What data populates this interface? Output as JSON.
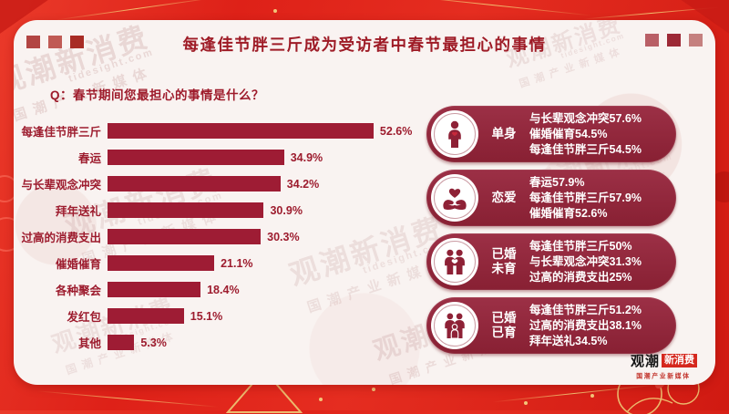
{
  "chart_data": {
    "type": "bar",
    "orientation": "horizontal",
    "title": "每逢佳节胖三斤成为受访者中春节最担心的事情",
    "question": "Q：春节期间您最担心的事情是什么？",
    "categories": [
      "每逢佳节胖三斤",
      "春运",
      "与长辈观念冲突",
      "拜年送礼",
      "过高的消费支出",
      "催婚催育",
      "各种聚会",
      "发红包",
      "其他"
    ],
    "values": [
      52.6,
      34.9,
      34.2,
      30.9,
      30.3,
      21.1,
      18.4,
      15.1,
      5.3
    ],
    "value_labels": [
      "52.6%",
      "34.9%",
      "34.2%",
      "30.9%",
      "30.3%",
      "21.1%",
      "18.4%",
      "15.1%",
      "5.3%"
    ],
    "unit": "%",
    "xlim": [
      0,
      60
    ],
    "grid": false,
    "legend": null,
    "bar_color": "#9e1c34"
  },
  "segments": [
    {
      "label_lines": [
        "单身"
      ],
      "icon": "single-person-icon",
      "stats": [
        "与长辈观念冲突57.6%",
        "催婚催育54.5%",
        "每逢佳节胖三斤54.5%"
      ]
    },
    {
      "label_lines": [
        "恋爱"
      ],
      "icon": "hands-heart-icon",
      "stats": [
        "春运57.9%",
        "每逢佳节胖三斤57.9%",
        "催婚催育52.6%"
      ]
    },
    {
      "label_lines": [
        "已婚",
        "未育"
      ],
      "icon": "couple-icon",
      "stats": [
        "每逢佳节胖三斤50%",
        "与长辈观念冲突31.3%",
        "过高的消费支出25%"
      ]
    },
    {
      "label_lines": [
        "已婚",
        "已育"
      ],
      "icon": "family-icon",
      "stats": [
        "每逢佳节胖三斤51.2%",
        "过高的消费支出38.1%",
        "拜年送礼34.5%"
      ]
    }
  ],
  "watermark": {
    "brand": "观潮新消费",
    "domain": "tidesight.com",
    "tagline": "国潮产业新媒体"
  },
  "logo": {
    "brand_black": "观潮",
    "brand_highlight": "新消费",
    "tagline": "国潮产业新媒体"
  },
  "colors": {
    "frame_red": "#e0251d",
    "card_bg": "#f9f3f1",
    "bar": "#9e1c34",
    "title": "#9e1b26",
    "pill": "#8f2639",
    "gold": "#eec27c"
  }
}
